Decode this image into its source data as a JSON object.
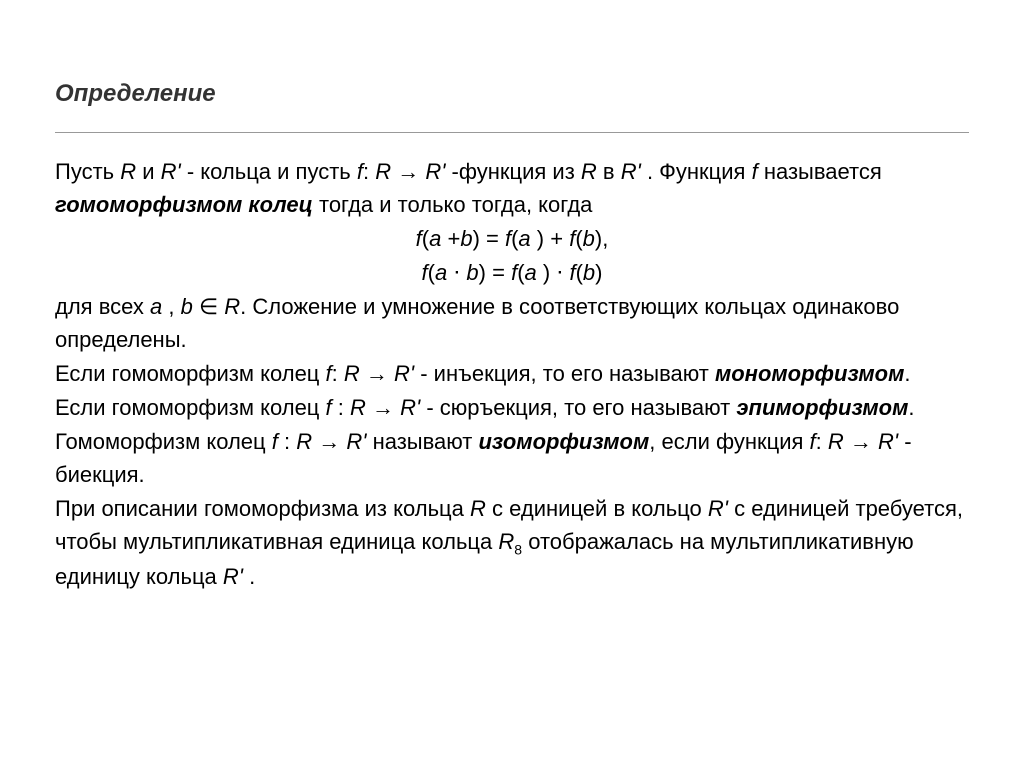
{
  "slide": {
    "title": "Определение",
    "para1_a": " Пусть  ",
    "R": "R",
    "para1_b": "  и ",
    "Rp": "R'",
    "para1_c": "  - кольца и пусть ",
    "f": "f",
    "para1_d": ": ",
    "arrow": " → ",
    "para1_e": "  -функция из  ",
    "para1_f": "  в  ",
    "para1_g": " . Функция ",
    "para1_h": " называется ",
    "homo": "гомоморфизмом колец",
    "para1_i": " тогда и только тогда, когда",
    "eq1_a": "f",
    "eq1_b": "(",
    "a": "a ",
    "eq1_c": "+",
    "b": "b",
    "eq1_d": ") = ",
    "eq1_e": "(",
    "eq1_f": ") + ",
    "eq1_g": "(",
    "eq1_h": "),",
    "eq2_b": "(",
    "eq2_dot": " ⋅ ",
    "eq2_c": ") = ",
    "eq2_d": "(",
    "eq2_e": ") ",
    "eq2_f": "(",
    "eq2_g": ")",
    "para2_a": "для всех  ",
    "para2_b": ", ",
    "para2_c": "  ∈  ",
    "para2_d": ". Сложение и умножение в соответствующих кольцах одинаково определены.",
    "para3_a": "Если гомоморфизм колец  ",
    "para3_b": ": ",
    "para3_c": "  - инъекция, то его называют ",
    "mono": "мономорфизмом",
    "para3_d": ".",
    "para4_a": "Если гомоморфизм колец ",
    "para4_b": " : ",
    "para4_c": "  - сюръекция, то его называют ",
    "epi": "эпиморфизмом",
    "para4_d": ".",
    "para5_a": "Гомоморфизм колец ",
    "para5_b": " : ",
    "para5_c": "  называют ",
    "iso": "изоморфизмом",
    "para5_d": ", если функция  ",
    "para5_e": ": ",
    "para5_f": "  - биекция.",
    "para6_a": "При описании гомоморфизма из кольца  ",
    "para6_b": "  с единицей в кольцо ",
    "para6_c": "  с единицей требуется, чтобы мультипликативная единица кольца  ",
    "slide_num": "8",
    "para6_d": " отображалась на мультипликативную единицу кольца ",
    "para6_e": " ."
  }
}
